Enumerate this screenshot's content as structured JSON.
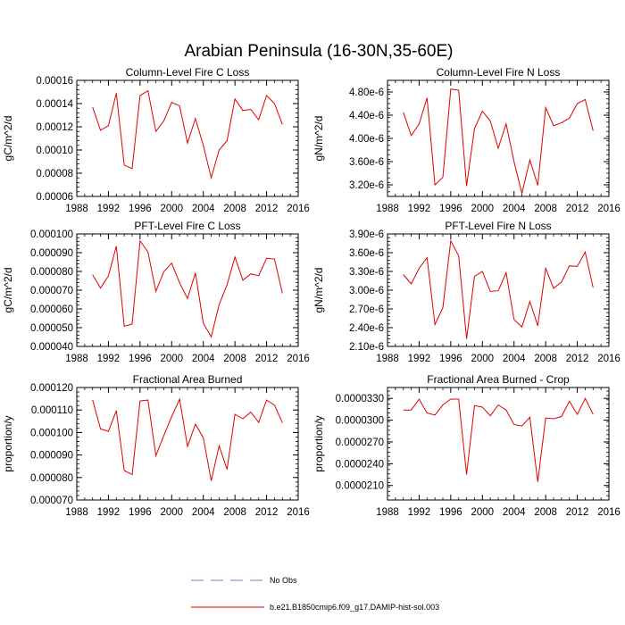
{
  "title": "Arabian Peninsula (16-30N,35-60E)",
  "legend": [
    {
      "label": "No Obs",
      "color": "#7777cc",
      "style": "dashed"
    },
    {
      "label": "b.e21.B1850cmip6.f09_g17.DAMIP-hist-sol.003",
      "color": "#e00000",
      "style": "solid"
    }
  ],
  "colors": {
    "series": "#e00000",
    "obs": "#7777cc"
  },
  "chart_data": [
    {
      "type": "line",
      "title": "Column-Level Fire C Loss",
      "ylabel": "gC/m^2/d",
      "xlim": [
        1988,
        2016
      ],
      "xticks": [
        1988,
        1992,
        1996,
        2000,
        2004,
        2008,
        2012,
        2016
      ],
      "ylim": [
        6e-05,
        0.00016
      ],
      "yticks": [
        6e-05,
        8e-05,
        0.0001,
        0.00012,
        0.00014,
        0.00016
      ],
      "yticklabels": [
        "0.00006",
        "0.00008",
        "0.00010",
        "0.00012",
        "0.00014",
        "0.00016"
      ],
      "x": [
        1990,
        1991,
        1992,
        1993,
        1994,
        1995,
        1996,
        1997,
        1998,
        1999,
        2000,
        2001,
        2002,
        2003,
        2004,
        2005,
        2006,
        2007,
        2008,
        2009,
        2010,
        2011,
        2012,
        2013,
        2014
      ],
      "series": [
        {
          "values": [
            0.000137,
            0.000117,
            0.000121,
            0.000149,
            8.7e-05,
            8.4e-05,
            0.000147,
            0.000151,
            0.000116,
            0.000125,
            0.000141,
            0.000138,
            0.000106,
            0.000127,
            0.000104,
            7.6e-05,
            0.0001,
            0.000108,
            0.000144,
            0.000134,
            0.000135,
            0.000126,
            0.000147,
            0.00014,
            0.000122
          ]
        }
      ]
    },
    {
      "type": "line",
      "title": "Column-Level Fire N Loss",
      "ylabel": "gN/m^2/d",
      "xlim": [
        1988,
        2016
      ],
      "xticks": [
        1988,
        1992,
        1996,
        2000,
        2004,
        2008,
        2012,
        2016
      ],
      "ylim": [
        3e-06,
        5e-06
      ],
      "yticks": [
        3.2e-06,
        3.6e-06,
        4e-06,
        4.4e-06,
        4.8e-06
      ],
      "yticklabels": [
        "3.20e-6",
        "3.60e-6",
        "4.00e-6",
        "4.40e-6",
        "4.80e-6"
      ],
      "x": [
        1990,
        1991,
        1992,
        1993,
        1994,
        1995,
        1996,
        1997,
        1998,
        1999,
        2000,
        2001,
        2002,
        2003,
        2004,
        2005,
        2006,
        2007,
        2008,
        2009,
        2010,
        2011,
        2012,
        2013,
        2014
      ],
      "series": [
        {
          "values": [
            4.45e-06,
            4.05e-06,
            4.25e-06,
            4.7e-06,
            3.2e-06,
            3.33e-06,
            4.85e-06,
            4.83e-06,
            3.18e-06,
            4.17e-06,
            4.47e-06,
            4.3e-06,
            3.83e-06,
            4.25e-06,
            3.6e-06,
            3.05e-06,
            3.63e-06,
            3.19e-06,
            4.53e-06,
            4.22e-06,
            4.27e-06,
            4.35e-06,
            4.6e-06,
            4.67e-06,
            4.13e-06
          ]
        }
      ]
    },
    {
      "type": "line",
      "title": "PFT-Level Fire C Loss",
      "ylabel": "gC/m^2/d",
      "xlim": [
        1988,
        2016
      ],
      "xticks": [
        1988,
        1992,
        1996,
        2000,
        2004,
        2008,
        2012,
        2016
      ],
      "ylim": [
        4e-05,
        0.0001
      ],
      "yticks": [
        4e-05,
        5e-05,
        6e-05,
        7e-05,
        8e-05,
        9e-05,
        0.0001
      ],
      "yticklabels": [
        "0.000040",
        "0.000050",
        "0.000060",
        "0.000070",
        "0.000080",
        "0.000090",
        "0.000100"
      ],
      "x": [
        1990,
        1991,
        1992,
        1993,
        1994,
        1995,
        1996,
        1997,
        1998,
        1999,
        2000,
        2001,
        2002,
        2003,
        2004,
        2005,
        2006,
        2007,
        2008,
        2009,
        2010,
        2011,
        2012,
        2013,
        2014
      ],
      "series": [
        {
          "values": [
            7.82e-05,
            7.11e-05,
            7.76e-05,
            9.35e-05,
            5.08e-05,
            5.19e-05,
            9.63e-05,
            9.04e-05,
            6.94e-05,
            7.98e-05,
            8.44e-05,
            7.39e-05,
            6.56e-05,
            7.92e-05,
            5.24e-05,
            4.51e-05,
            6.23e-05,
            7.29e-05,
            8.77e-05,
            7.53e-05,
            7.87e-05,
            7.77e-05,
            8.7e-05,
            8.66e-05,
            6.83e-05
          ]
        }
      ]
    },
    {
      "type": "line",
      "title": "PFT-Level Fire N Loss",
      "ylabel": "gN/m^2/d",
      "xlim": [
        1988,
        2016
      ],
      "xticks": [
        1988,
        1992,
        1996,
        2000,
        2004,
        2008,
        2012,
        2016
      ],
      "ylim": [
        2.1e-06,
        3.9e-06
      ],
      "yticks": [
        2.1e-06,
        2.4e-06,
        2.7e-06,
        3e-06,
        3.3e-06,
        3.6e-06,
        3.9e-06
      ],
      "yticklabels": [
        "2.10e-6",
        "2.40e-6",
        "2.70e-6",
        "3.00e-6",
        "3.30e-6",
        "3.60e-6",
        "3.90e-6"
      ],
      "x": [
        1990,
        1991,
        1992,
        1993,
        1994,
        1995,
        1996,
        1997,
        1998,
        1999,
        2000,
        2001,
        2002,
        2003,
        2004,
        2005,
        2006,
        2007,
        2008,
        2009,
        2010,
        2011,
        2012,
        2013,
        2014
      ],
      "series": [
        {
          "values": [
            3.25e-06,
            3.1e-06,
            3.35e-06,
            3.52e-06,
            2.45e-06,
            2.72e-06,
            3.79e-06,
            3.55e-06,
            2.22e-06,
            3.22e-06,
            3.3e-06,
            2.98e-06,
            2.99e-06,
            3.28e-06,
            2.53e-06,
            2.41e-06,
            2.82e-06,
            2.43e-06,
            3.35e-06,
            3.03e-06,
            3.13e-06,
            3.39e-06,
            3.38e-06,
            3.61e-06,
            3.04e-06
          ]
        }
      ]
    },
    {
      "type": "line",
      "title": "Fractional Area Burned",
      "ylabel": "proportion/y",
      "xlim": [
        1988,
        2016
      ],
      "xticks": [
        1988,
        1992,
        1996,
        2000,
        2004,
        2008,
        2012,
        2016
      ],
      "ylim": [
        7e-05,
        0.00012
      ],
      "yticks": [
        7e-05,
        8e-05,
        9e-05,
        0.0001,
        0.00011,
        0.00012
      ],
      "yticklabels": [
        "0.000070",
        "0.000080",
        "0.000090",
        "0.000100",
        "0.000110",
        "0.000120"
      ],
      "x": [
        1990,
        1991,
        1992,
        1993,
        1994,
        1995,
        1996,
        1997,
        1998,
        1999,
        2000,
        2001,
        2002,
        2003,
        2004,
        2005,
        2006,
        2007,
        2008,
        2009,
        2010,
        2011,
        2012,
        2013,
        2014
      ],
      "series": [
        {
          "values": [
            0.0001145,
            0.0001016,
            0.0001005,
            0.0001097,
            8.31e-05,
            8.13e-05,
            0.000114,
            0.0001144,
            8.97e-05,
            9.86e-05,
            0.0001071,
            0.0001148,
            9.38e-05,
            0.0001037,
            9.77e-05,
            7.85e-05,
            9.41e-05,
            8.36e-05,
            0.0001081,
            0.0001061,
            0.0001091,
            0.0001045,
            0.0001144,
            0.0001122,
            0.0001043
          ]
        }
      ]
    },
    {
      "type": "line",
      "title": "Fractional Area Burned - Crop",
      "ylabel": "proportion/y",
      "xlim": [
        1988,
        2016
      ],
      "xticks": [
        1988,
        1992,
        1996,
        2000,
        2004,
        2008,
        2012,
        2016
      ],
      "ylim": [
        1.9e-05,
        3.45e-05
      ],
      "yticks": [
        2.1e-05,
        2.4e-05,
        2.7e-05,
        3e-05,
        3.3e-05
      ],
      "yticklabels": [
        "0.0000210",
        "0.0000240",
        "0.0000270",
        "0.0000300",
        "0.0000330"
      ],
      "x": [
        1990,
        1991,
        1992,
        1993,
        1994,
        1995,
        1996,
        1997,
        1998,
        1999,
        2000,
        2001,
        2002,
        2003,
        2004,
        2005,
        2006,
        2007,
        2008,
        2009,
        2010,
        2011,
        2012,
        2013,
        2014
      ],
      "series": [
        {
          "values": [
            3.14e-05,
            3.14e-05,
            3.29e-05,
            3.1e-05,
            3.07e-05,
            3.21e-05,
            3.29e-05,
            3.29e-05,
            2.25e-05,
            3.2e-05,
            3.18e-05,
            3.06e-05,
            3.21e-05,
            3.14e-05,
            2.94e-05,
            2.92e-05,
            3.04e-05,
            2.15e-05,
            3.03e-05,
            3.02e-05,
            3.05e-05,
            3.26e-05,
            3.08e-05,
            3.3e-05,
            3.08e-05
          ]
        }
      ]
    }
  ]
}
